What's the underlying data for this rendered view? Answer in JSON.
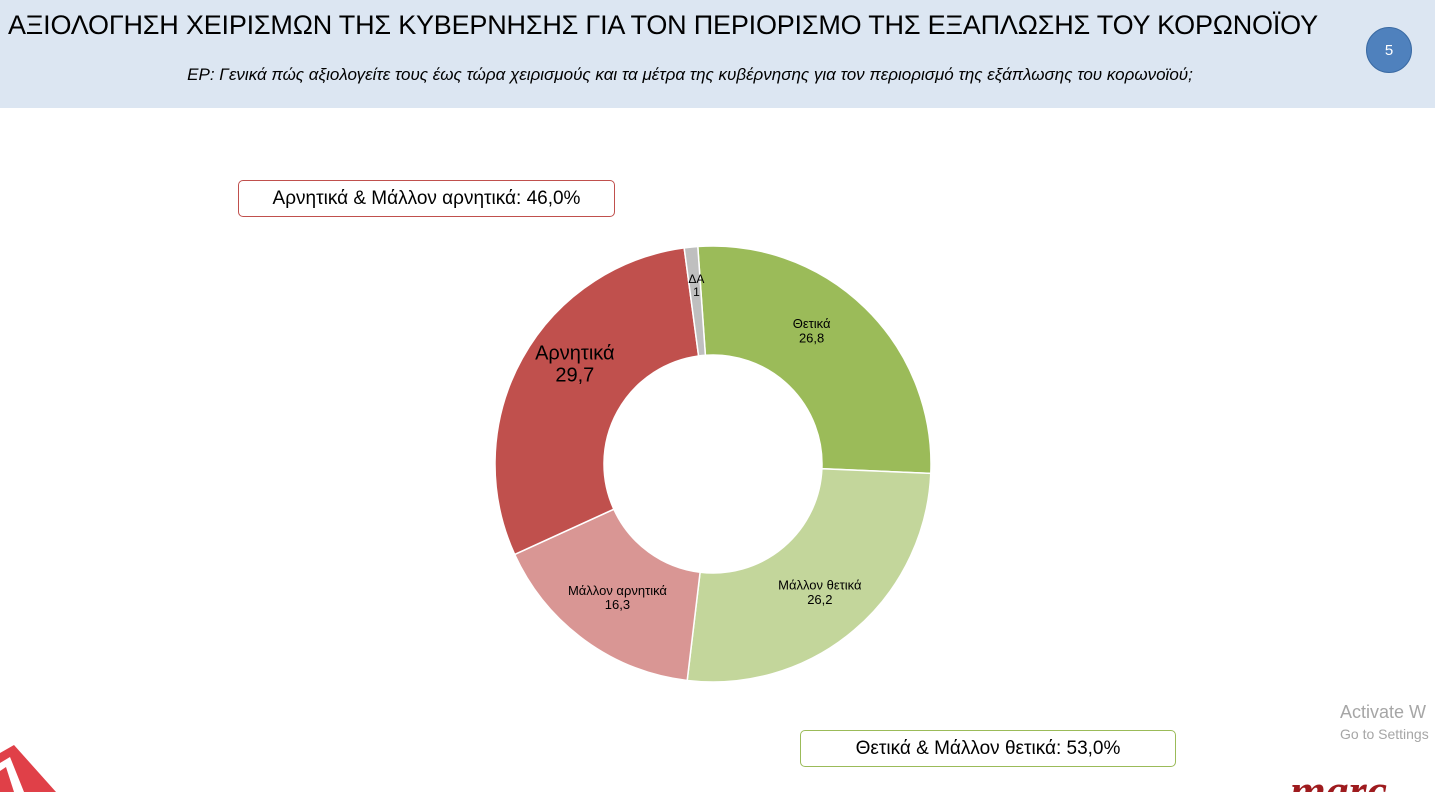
{
  "header": {
    "title": "ΑΞΙΟΛΟΓΗΣΗ ΧΕΙΡΙΣΜΩΝ ΤΗΣ ΚΥΒΕΡΝΗΣΗΣ ΓΙΑ ΤΟΝ ΠΕΡΙΟΡΙΣΜΟ ΤΗΣ ΕΞΑΠΛΩΣΗΣ ΤΟΥ ΚΟΡΩΝΟΪΟΥ",
    "question": "ΕΡ: Γενικά πώς αξιολογείτε  τους έως τώρα χειρισμούς και τα μέτρα της κυβέρνησης για τον περιορισμό της εξάπλωσης του κορωνοϊού;",
    "page_number": "5",
    "background_color": "#dce6f2"
  },
  "summaries": {
    "negative": "Αρνητικά & Μάλλον αρνητικά: 46,0%",
    "positive": "Θετικά & Μάλλον θετικά: 53,0%"
  },
  "watermark": {
    "line1": "Activate W",
    "line2": "Go to Settings"
  },
  "logos": {
    "left_icon": "red-triangle-logo",
    "right_icon": "marc-logo",
    "right_color": "#9e1b1e"
  },
  "chart_data": {
    "type": "pie",
    "variant": "donut",
    "start_angle_deg": -4,
    "direction": "clockwise",
    "slices": [
      {
        "label": "Θετικά",
        "value": 26.8,
        "display": "26,8",
        "color": "#9bbb59"
      },
      {
        "label": "Μάλλον θετικά",
        "value": 26.2,
        "display": "26,2",
        "color": "#c3d69b"
      },
      {
        "label": "Μάλλον αρνητικά",
        "value": 16.3,
        "display": "16,3",
        "color": "#d99694"
      },
      {
        "label": "Αρνητικά",
        "value": 29.7,
        "display": "29,7",
        "color": "#c0504d"
      },
      {
        "label": "ΔΑ",
        "value": 1,
        "display": "1",
        "color": "#bfbfbf"
      }
    ]
  }
}
